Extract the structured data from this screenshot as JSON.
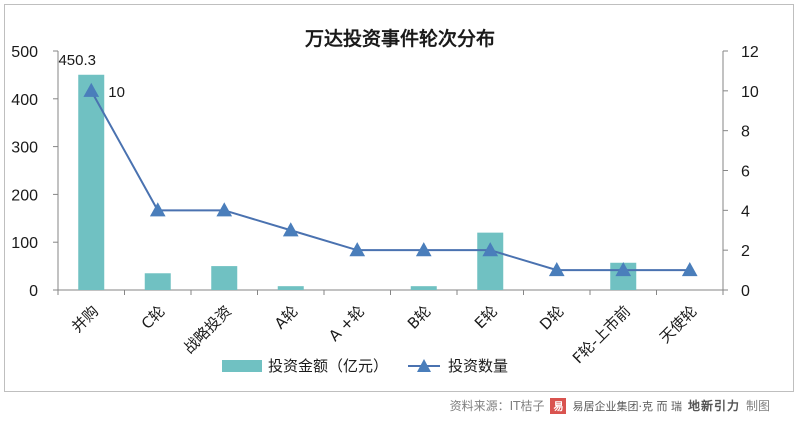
{
  "chart_data": {
    "type": "bar",
    "title": "万达投资事件轮次分布",
    "categories": [
      "并购",
      "C轮",
      "战略投资",
      "A轮",
      "A +轮",
      "B轮",
      "E轮",
      "D轮",
      "F轮-上市前",
      "天使轮"
    ],
    "series": [
      {
        "name": "投资金额（亿元）",
        "type": "bar",
        "axis": "left",
        "color": "#70c1c2",
        "values": [
          450.3,
          35,
          50,
          8,
          0,
          8,
          120,
          0,
          57,
          0
        ]
      },
      {
        "name": "投资数量",
        "type": "line",
        "axis": "right",
        "color": "#4a72b0",
        "marker_color": "#4a7ebb",
        "values": [
          10,
          4,
          4,
          3,
          2,
          2,
          2,
          1,
          1,
          1
        ]
      }
    ],
    "y_left": {
      "min": 0,
      "max": 500,
      "ticks": [
        "0",
        "100",
        "200",
        "300",
        "400",
        "500"
      ]
    },
    "y_right": {
      "min": 0,
      "max": 12,
      "ticks": [
        "0",
        "2",
        "4",
        "6",
        "8",
        "10",
        "12"
      ]
    },
    "data_labels": {
      "bar_first": "450.3",
      "line_first": "10"
    },
    "legend_position": "bottom",
    "grid": false
  },
  "source": {
    "label": "资料来源：IT桔子",
    "logo1_mark": "易",
    "logo1_text": "易居企业集团·克 而 瑞",
    "logo2_text": "地新引力",
    "suffix": "制图"
  }
}
